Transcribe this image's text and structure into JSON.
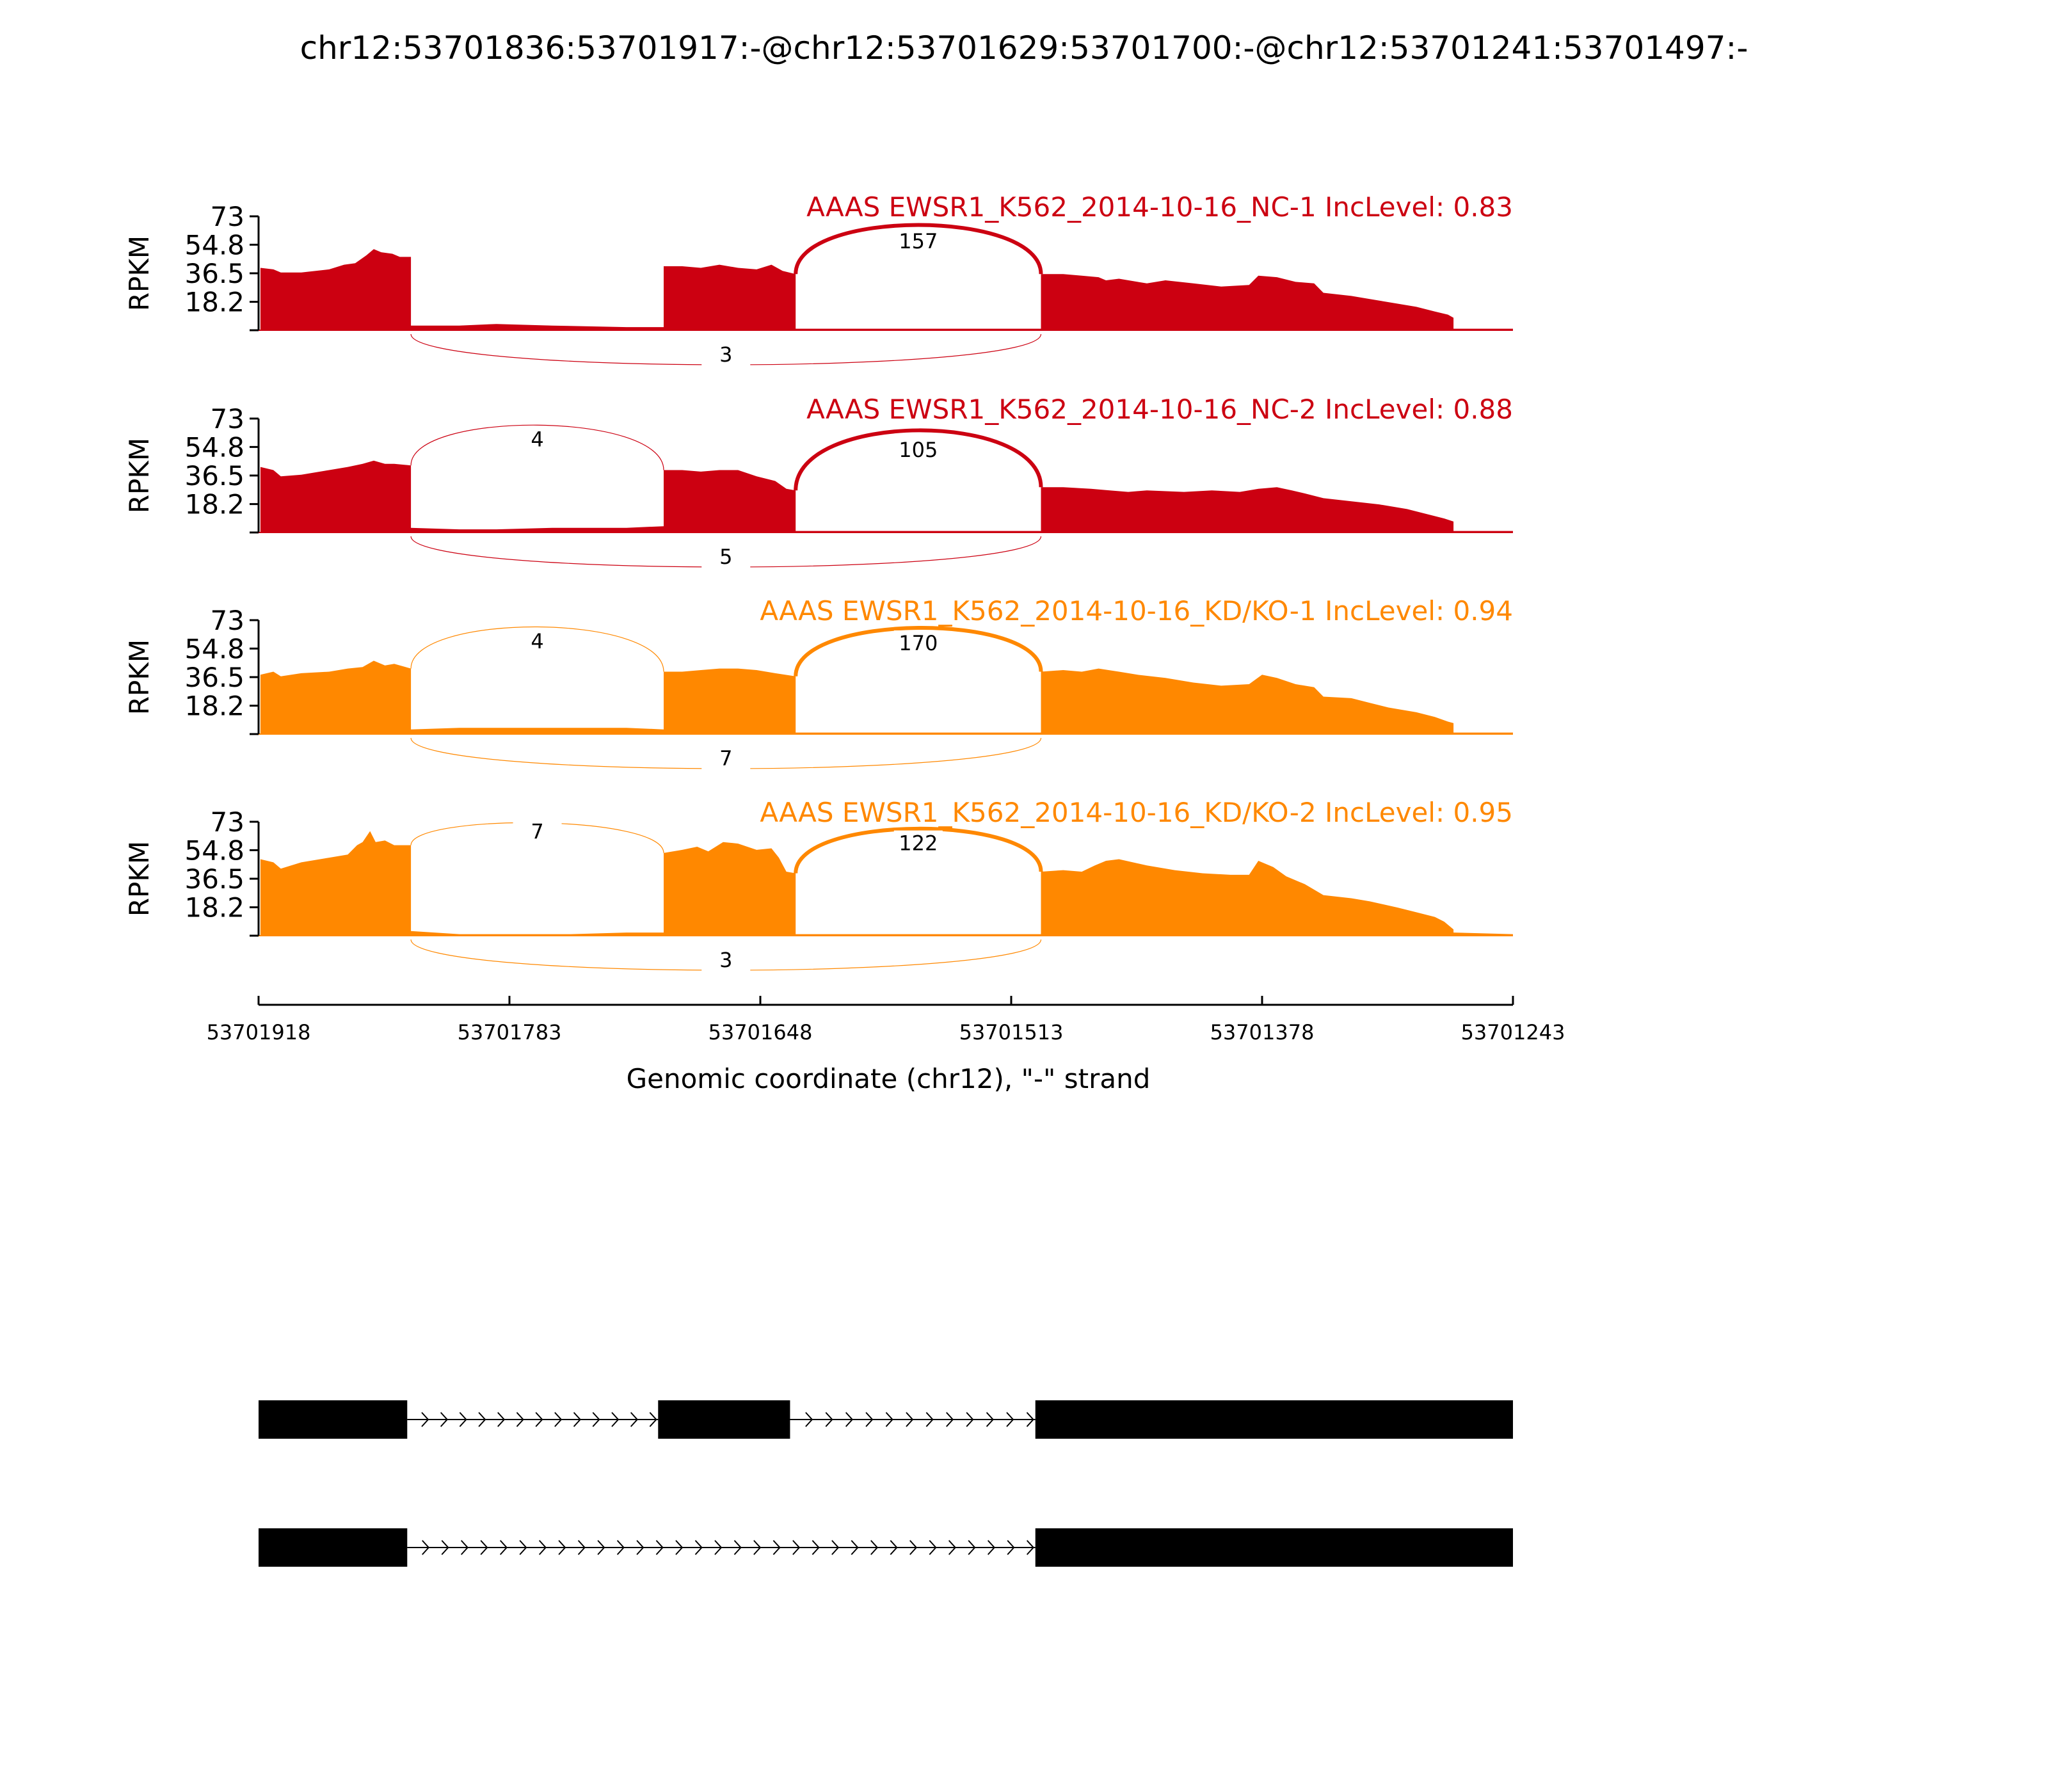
{
  "chart_data": {
    "type": "area",
    "title": "chr12:53701836:53701917:-@chr12:53701629:53701700:-@chr12:53701241:53701497:-",
    "xlabel": "Genomic coordinate (chr12), \"-\" strand",
    "ylabel": "RPKM",
    "x_ticks": [
      "53701918",
      "53701783",
      "53701648",
      "53701513",
      "53701378",
      "53701243"
    ],
    "x_tick_values": [
      53701918,
      53701783,
      53701648,
      53701513,
      53701378,
      53701243
    ],
    "xlim": [
      53701918,
      53701243
    ],
    "y_ticks": [
      "73",
      "54.8",
      "36.5",
      "18.2"
    ],
    "y_tick_values": [
      73,
      54.8,
      36.5,
      18.2
    ],
    "ylim": [
      0,
      73
    ],
    "colors": {
      "NC": "#cc0011",
      "KD": "#ff8800",
      "gene": "#000000"
    },
    "series": [
      {
        "name": "AAAS EWSR1_K562_2014-10-16_NC-1 IncLevel: 0.83",
        "color": "#cc0011",
        "coverage": [
          [
            53701917,
            40
          ],
          [
            53701910,
            39
          ],
          [
            53701906,
            37
          ],
          [
            53701895,
            37
          ],
          [
            53701880,
            39
          ],
          [
            53701872,
            42
          ],
          [
            53701866,
            43
          ],
          [
            53701860,
            48
          ],
          [
            53701856,
            52
          ],
          [
            53701852,
            50
          ],
          [
            53701846,
            49
          ],
          [
            53701842,
            47
          ],
          [
            53701838,
            47
          ],
          [
            53701836,
            47
          ],
          [
            53701836,
            3
          ],
          [
            53701810,
            3
          ],
          [
            53701790,
            4
          ],
          [
            53701760,
            3
          ],
          [
            53701720,
            2
          ],
          [
            53701700,
            2
          ],
          [
            53701700,
            41
          ],
          [
            53701690,
            41
          ],
          [
            53701680,
            40
          ],
          [
            53701670,
            42
          ],
          [
            53701660,
            40
          ],
          [
            53701650,
            39
          ],
          [
            53701642,
            42
          ],
          [
            53701636,
            38
          ],
          [
            53701629,
            36
          ],
          [
            53701629,
            1
          ],
          [
            53701600,
            1
          ],
          [
            53701560,
            1
          ],
          [
            53701510,
            1
          ],
          [
            53701497,
            1
          ],
          [
            53701497,
            36
          ],
          [
            53701485,
            36
          ],
          [
            53701475,
            35
          ],
          [
            53701466,
            34
          ],
          [
            53701462,
            32
          ],
          [
            53701455,
            33
          ],
          [
            53701440,
            30
          ],
          [
            53701430,
            32
          ],
          [
            53701415,
            30
          ],
          [
            53701400,
            28
          ],
          [
            53701385,
            29
          ],
          [
            53701380,
            35
          ],
          [
            53701370,
            34
          ],
          [
            53701360,
            31
          ],
          [
            53701350,
            30
          ],
          [
            53701345,
            24
          ],
          [
            53701330,
            22
          ],
          [
            53701320,
            20
          ],
          [
            53701310,
            18
          ],
          [
            53701295,
            15
          ],
          [
            53701285,
            12
          ],
          [
            53701278,
            10
          ],
          [
            53701275,
            8
          ],
          [
            53701275,
            1
          ],
          [
            53701243,
            1
          ]
        ],
        "junctions": [
          {
            "value": 157,
            "from": 53701629,
            "to": 53701497,
            "side": "top"
          },
          {
            "value": 3,
            "from": 53701836,
            "to": 53701497,
            "side": "bottom"
          }
        ]
      },
      {
        "name": "AAAS EWSR1_K562_2014-10-16_NC-2 IncLevel: 0.88",
        "color": "#cc0011",
        "coverage": [
          [
            53701917,
            42
          ],
          [
            53701910,
            40
          ],
          [
            53701906,
            36
          ],
          [
            53701895,
            37
          ],
          [
            53701880,
            40
          ],
          [
            53701870,
            42
          ],
          [
            53701862,
            44
          ],
          [
            53701856,
            46
          ],
          [
            53701850,
            44
          ],
          [
            53701845,
            44
          ],
          [
            53701836,
            43
          ],
          [
            53701836,
            3
          ],
          [
            53701810,
            2
          ],
          [
            53701790,
            2
          ],
          [
            53701760,
            3
          ],
          [
            53701720,
            3
          ],
          [
            53701700,
            4
          ],
          [
            53701700,
            40
          ],
          [
            53701690,
            40
          ],
          [
            53701680,
            39
          ],
          [
            53701670,
            40
          ],
          [
            53701660,
            40
          ],
          [
            53701650,
            36
          ],
          [
            53701640,
            33
          ],
          [
            53701634,
            28
          ],
          [
            53701629,
            27
          ],
          [
            53701629,
            1
          ],
          [
            53701600,
            1
          ],
          [
            53701560,
            1
          ],
          [
            53701510,
            1
          ],
          [
            53701497,
            1
          ],
          [
            53701497,
            29
          ],
          [
            53701485,
            29
          ],
          [
            53701470,
            28
          ],
          [
            53701460,
            27
          ],
          [
            53701450,
            26
          ],
          [
            53701440,
            27
          ],
          [
            53701420,
            26
          ],
          [
            53701405,
            27
          ],
          [
            53701390,
            26
          ],
          [
            53701380,
            28
          ],
          [
            53701370,
            29
          ],
          [
            53701362,
            27
          ],
          [
            53701355,
            25
          ],
          [
            53701345,
            22
          ],
          [
            53701330,
            20
          ],
          [
            53701315,
            18
          ],
          [
            53701300,
            15
          ],
          [
            53701290,
            12
          ],
          [
            53701280,
            9
          ],
          [
            53701275,
            7
          ],
          [
            53701275,
            1
          ],
          [
            53701243,
            1
          ]
        ],
        "junctions": [
          {
            "value": 4,
            "from": 53701836,
            "to": 53701700,
            "side": "top"
          },
          {
            "value": 105,
            "from": 53701629,
            "to": 53701497,
            "side": "top"
          },
          {
            "value": 5,
            "from": 53701836,
            "to": 53701497,
            "side": "bottom"
          }
        ]
      },
      {
        "name": "AAAS EWSR1_K562_2014-10-16_KD/KO-1 IncLevel: 0.94",
        "color": "#ff8800",
        "coverage": [
          [
            53701917,
            38
          ],
          [
            53701910,
            40
          ],
          [
            53701906,
            37
          ],
          [
            53701895,
            39
          ],
          [
            53701880,
            40
          ],
          [
            53701870,
            42
          ],
          [
            53701862,
            43
          ],
          [
            53701856,
            47
          ],
          [
            53701850,
            44
          ],
          [
            53701845,
            45
          ],
          [
            53701836,
            42
          ],
          [
            53701836,
            3
          ],
          [
            53701810,
            4
          ],
          [
            53701780,
            4
          ],
          [
            53701750,
            4
          ],
          [
            53701720,
            4
          ],
          [
            53701700,
            3
          ],
          [
            53701700,
            40
          ],
          [
            53701690,
            40
          ],
          [
            53701680,
            41
          ],
          [
            53701670,
            42
          ],
          [
            53701660,
            42
          ],
          [
            53701650,
            41
          ],
          [
            53701640,
            39
          ],
          [
            53701629,
            37
          ],
          [
            53701629,
            1
          ],
          [
            53701600,
            1
          ],
          [
            53701560,
            1
          ],
          [
            53701510,
            1
          ],
          [
            53701497,
            1
          ],
          [
            53701497,
            40
          ],
          [
            53701485,
            41
          ],
          [
            53701475,
            40
          ],
          [
            53701466,
            42
          ],
          [
            53701455,
            40
          ],
          [
            53701445,
            38
          ],
          [
            53701430,
            36
          ],
          [
            53701415,
            33
          ],
          [
            53701400,
            31
          ],
          [
            53701385,
            32
          ],
          [
            53701378,
            38
          ],
          [
            53701370,
            36
          ],
          [
            53701360,
            32
          ],
          [
            53701350,
            30
          ],
          [
            53701345,
            24
          ],
          [
            53701330,
            23
          ],
          [
            53701320,
            20
          ],
          [
            53701310,
            17
          ],
          [
            53701295,
            14
          ],
          [
            53701285,
            11
          ],
          [
            53701278,
            8
          ],
          [
            53701275,
            7
          ],
          [
            53701275,
            1
          ],
          [
            53701243,
            1
          ]
        ],
        "junctions": [
          {
            "value": 4,
            "from": 53701836,
            "to": 53701700,
            "side": "top"
          },
          {
            "value": 170,
            "from": 53701629,
            "to": 53701497,
            "side": "top"
          },
          {
            "value": 7,
            "from": 53701836,
            "to": 53701497,
            "side": "bottom"
          }
        ]
      },
      {
        "name": "AAAS EWSR1_K562_2014-10-16_KD/KO-2 IncLevel: 0.95",
        "color": "#ff8800",
        "coverage": [
          [
            53701917,
            49
          ],
          [
            53701910,
            47
          ],
          [
            53701906,
            43
          ],
          [
            53701895,
            47
          ],
          [
            53701880,
            50
          ],
          [
            53701870,
            52
          ],
          [
            53701865,
            58
          ],
          [
            53701862,
            60
          ],
          [
            53701858,
            67
          ],
          [
            53701855,
            60
          ],
          [
            53701850,
            61
          ],
          [
            53701845,
            58
          ],
          [
            53701836,
            58
          ],
          [
            53701836,
            3
          ],
          [
            53701810,
            1
          ],
          [
            53701780,
            1
          ],
          [
            53701750,
            1
          ],
          [
            53701720,
            2
          ],
          [
            53701700,
            2
          ],
          [
            53701700,
            53
          ],
          [
            53701690,
            55
          ],
          [
            53701682,
            57
          ],
          [
            53701676,
            54
          ],
          [
            53701668,
            60
          ],
          [
            53701660,
            59
          ],
          [
            53701650,
            55
          ],
          [
            53701642,
            56
          ],
          [
            53701638,
            50
          ],
          [
            53701634,
            41
          ],
          [
            53701629,
            40
          ],
          [
            53701629,
            1
          ],
          [
            53701600,
            1
          ],
          [
            53701560,
            1
          ],
          [
            53701510,
            1
          ],
          [
            53701497,
            1
          ],
          [
            53701497,
            41
          ],
          [
            53701485,
            42
          ],
          [
            53701475,
            41
          ],
          [
            53701468,
            45
          ],
          [
            53701462,
            48
          ],
          [
            53701455,
            49
          ],
          [
            53701440,
            45
          ],
          [
            53701425,
            42
          ],
          [
            53701410,
            40
          ],
          [
            53701395,
            39
          ],
          [
            53701385,
            39
          ],
          [
            53701380,
            48
          ],
          [
            53701372,
            44
          ],
          [
            53701365,
            38
          ],
          [
            53701355,
            33
          ],
          [
            53701345,
            26
          ],
          [
            53701330,
            24
          ],
          [
            53701320,
            22
          ],
          [
            53701305,
            18
          ],
          [
            53701295,
            15
          ],
          [
            53701285,
            12
          ],
          [
            53701280,
            9
          ],
          [
            53701275,
            4
          ],
          [
            53701275,
            2
          ],
          [
            53701243,
            1
          ]
        ],
        "junctions": [
          {
            "value": 7,
            "from": 53701836,
            "to": 53701700,
            "side": "top"
          },
          {
            "value": 122,
            "from": 53701629,
            "to": 53701497,
            "side": "top"
          },
          {
            "value": 3,
            "from": 53701836,
            "to": 53701497,
            "side": "bottom"
          }
        ]
      }
    ],
    "isoforms": [
      {
        "exons": [
          [
            53701918,
            53701838
          ],
          [
            53701703,
            53701632
          ],
          [
            53701500,
            53701243
          ]
        ]
      },
      {
        "exons": [
          [
            53701918,
            53701838
          ],
          [
            53701500,
            53701243
          ]
        ]
      }
    ]
  }
}
